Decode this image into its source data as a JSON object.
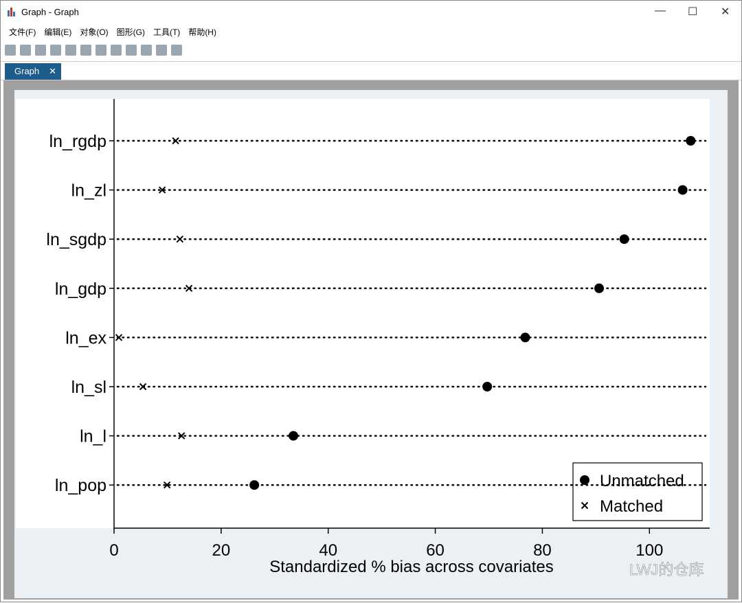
{
  "window": {
    "title": "Graph - Graph",
    "menu": [
      "文件(F)",
      "编辑(E)",
      "对象(O)",
      "图形(G)",
      "工具(T)",
      "帮助(H)"
    ],
    "tab": "Graph"
  },
  "chart_data": {
    "type": "dot",
    "categories": [
      "ln_rgdp",
      "ln_zl",
      "ln_sgdp",
      "ln_gdp",
      "ln_ex",
      "ln_sl",
      "ln_l",
      "ln_pop"
    ],
    "series": [
      {
        "name": "Unmatched",
        "color": "#000000",
        "marker": "circle",
        "values": [
          107.7,
          106.2,
          95.3,
          90.6,
          76.8,
          69.7,
          33.5,
          26.2
        ]
      },
      {
        "name": "Matched",
        "color": "#000000",
        "marker": "x",
        "values": [
          11.5,
          9.0,
          12.3,
          14.0,
          0.9,
          5.4,
          12.6,
          9.9
        ]
      }
    ],
    "x_label": "Standardized % bias across covariates",
    "xlim": [
      0,
      111
    ],
    "xticks": [
      0,
      20,
      40,
      60,
      80,
      100
    ],
    "legend": "bottom-right"
  },
  "watermark": "LWJ的仓库"
}
